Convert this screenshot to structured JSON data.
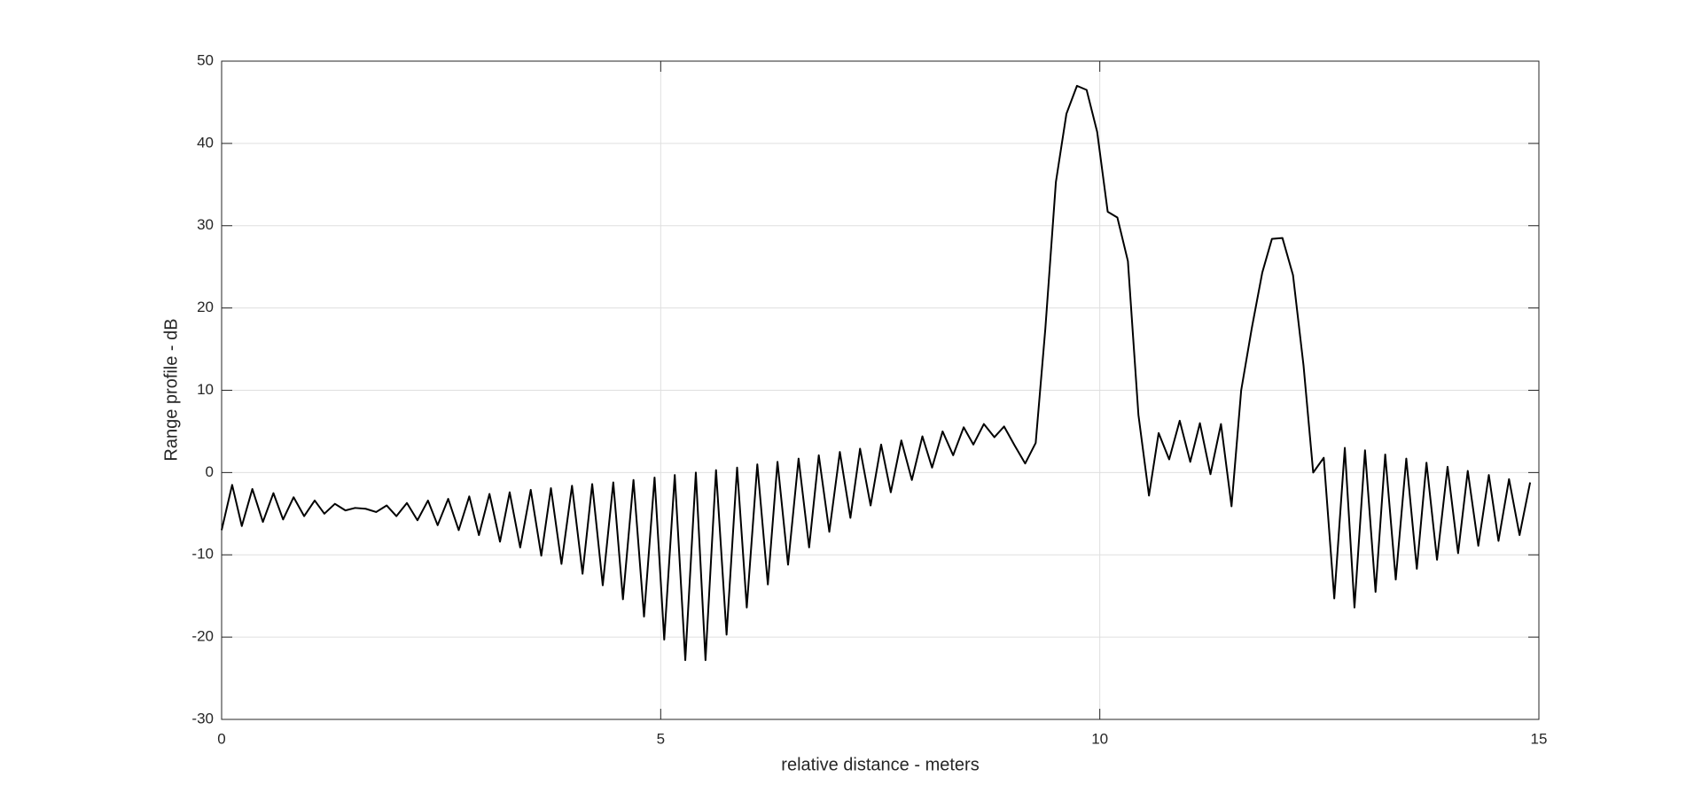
{
  "chart_data": {
    "type": "line",
    "xlabel": "relative distance - meters",
    "ylabel": "Range profile - dB",
    "color": "#000000",
    "grid": true,
    "xlim": [
      0,
      15
    ],
    "xticks": [
      0,
      5,
      10,
      15
    ],
    "ylim": [
      -30,
      50
    ],
    "yticks": [
      -30,
      -20,
      -10,
      0,
      10,
      20,
      30,
      40,
      50
    ],
    "x": [
      0,
      0.12,
      0.23,
      0.35,
      0.47,
      0.59,
      0.7,
      0.82,
      0.94,
      1.06,
      1.17,
      1.29,
      1.41,
      1.52,
      1.64,
      1.76,
      1.88,
      1.99,
      2.11,
      2.23,
      2.35,
      2.46,
      2.58,
      2.7,
      2.82,
      2.93,
      3.05,
      3.17,
      3.28,
      3.4,
      3.52,
      3.64,
      3.75,
      3.87,
      3.99,
      4.11,
      4.22,
      4.34,
      4.46,
      4.57,
      4.69,
      4.81,
      4.93,
      5.04,
      5.16,
      5.28,
      5.4,
      5.51,
      5.63,
      5.75,
      5.87,
      5.98,
      6.1,
      6.22,
      6.33,
      6.45,
      6.57,
      6.69,
      6.8,
      6.92,
      7.04,
      7.16,
      7.27,
      7.39,
      7.51,
      7.62,
      7.74,
      7.86,
      7.98,
      8.09,
      8.21,
      8.33,
      8.45,
      8.56,
      8.68,
      8.8,
      8.91,
      9.03,
      9.15,
      9.27,
      9.38,
      9.5,
      9.62,
      9.74,
      9.85,
      9.97,
      10.09,
      10.2,
      10.32,
      10.44,
      10.56,
      10.67,
      10.79,
      10.91,
      11.03,
      11.14,
      11.26,
      11.38,
      11.5,
      11.61,
      11.73,
      11.85,
      11.96,
      12.08,
      12.2,
      12.32,
      12.43,
      12.55,
      12.67,
      12.79,
      12.9,
      13.02,
      13.14,
      13.25,
      13.37,
      13.49,
      13.61,
      13.72,
      13.84,
      13.96,
      14.08,
      14.19,
      14.31,
      14.43,
      14.54,
      14.66,
      14.78,
      14.9
    ],
    "values": [
      -7,
      -1.5,
      -6.5,
      -2,
      -6,
      -2.5,
      -5.7,
      -3,
      -5.3,
      -3.4,
      -5,
      -3.8,
      -4.6,
      -4.3,
      -4.4,
      -4.8,
      -4,
      -5.3,
      -3.7,
      -5.8,
      -3.4,
      -6.4,
      -3.2,
      -7,
      -2.9,
      -7.6,
      -2.6,
      -8.4,
      -2.4,
      -9.1,
      -2.1,
      -10.1,
      -1.9,
      -11.1,
      -1.6,
      -12.3,
      -1.4,
      -13.7,
      -1.2,
      -15.4,
      -0.9,
      -17.5,
      -0.6,
      -20.3,
      -0.3,
      -22.8,
      0,
      -22.8,
      0.3,
      -19.7,
      0.6,
      -16.4,
      1,
      -13.6,
      1.3,
      -11.2,
      1.7,
      -9.1,
      2.1,
      -7.2,
      2.5,
      -5.5,
      2.9,
      -4,
      3.4,
      -2.4,
      3.9,
      -0.9,
      4.4,
      0.6,
      5,
      2.1,
      5.5,
      3.4,
      5.9,
      4.3,
      5.6,
      3.3,
      1.1,
      3.6,
      17.5,
      35.3,
      43.6,
      47,
      46.5,
      41.4,
      31.7,
      31,
      25.7,
      7,
      -2.8,
      4.8,
      1.6,
      6.3,
      1.3,
      6,
      -0.2,
      5.9,
      -4.1,
      10,
      17.5,
      24.3,
      28.4,
      28.5,
      24,
      13,
      0,
      1.8,
      -15.3,
      3,
      -16.4,
      2.7,
      -14.5,
      2.2,
      -13,
      1.7,
      -11.7,
      1.2,
      -10.6,
      0.7,
      -9.8,
      0.2,
      -8.9,
      -0.3,
      -8.3,
      -0.8,
      -7.6,
      -1.2
    ]
  }
}
